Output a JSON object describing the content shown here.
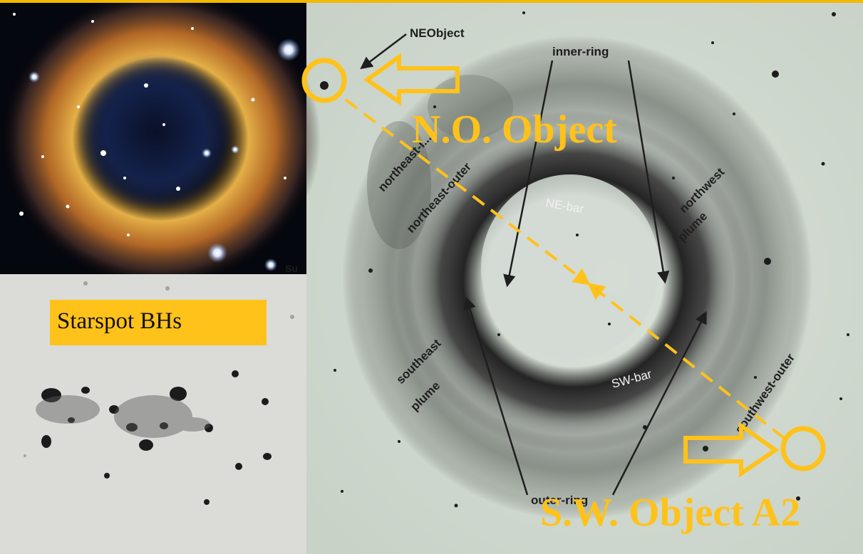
{
  "colors": {
    "accent_yellow": "#ffc21a",
    "annotation_dark": "#2a2a2a",
    "plate_background": "#d2dcd2"
  },
  "inset_label": "Starspot BHs",
  "annotations": {
    "ne_object_caption": "N.O. Object",
    "sw_object_caption": "S.W. Object A2",
    "ne_object_tag": "NEObject",
    "inner_ring": "inner-ring",
    "outer_ring": "outer-ring",
    "ne_bar": "NE-bar",
    "sw_bar": "SW-bar",
    "northeast_inner": "northeast-i...",
    "northeast_outer": "northeast-outer",
    "northwest_plume_1": "northwest",
    "northwest_plume_2": "plume",
    "southeast_plume_1": "southeast",
    "southeast_plume_2": "plume",
    "southwest_outer": "southwest-outer",
    "inset_clip_text": "Su"
  },
  "icons": [
    "open-arrow-icon",
    "circle-marker-icon",
    "arrowhead-icon"
  ]
}
